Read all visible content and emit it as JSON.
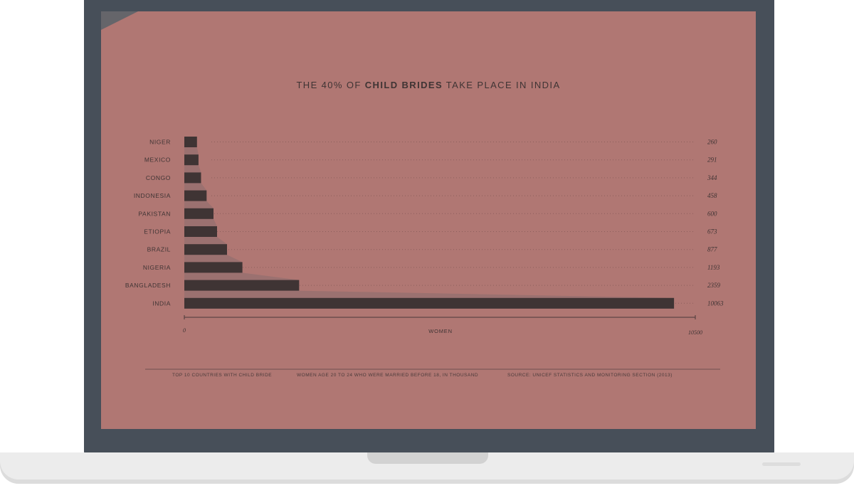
{
  "chart_data": {
    "type": "bar",
    "orientation": "horizontal",
    "title_parts": [
      "THE 40% OF ",
      "CHILD BRIDES",
      " TAKE PLACE IN INDIA"
    ],
    "categories": [
      "NIGER",
      "MEXICO",
      "CONGO",
      "INDONESIA",
      "PAKISTAN",
      "ETIOPIA",
      "BRAZIL",
      "NIGERIA",
      "BANGLADESH",
      "INDIA"
    ],
    "values": [
      260,
      291,
      344,
      458,
      600,
      673,
      877,
      1193,
      2359,
      10063
    ],
    "value_labels": [
      "260",
      "291",
      "344",
      "458",
      "600",
      "673",
      "877",
      "1193",
      "2359",
      "10063"
    ],
    "xlabel": "WOMEN",
    "xlim": [
      0,
      10500
    ],
    "x_tick_labels": [
      "0",
      "10500"
    ],
    "footer": {
      "left": "TOP 10 COUNTRIES WITH CHILD BRIDE",
      "middle": "WOMEN AGE 20 TO 24 WHO WERE MARRIED BEFORE 18, IN THOUSAND",
      "right": "SOURCE: UNICEF STATISTICS AND MONITORING SECTION (2013)"
    },
    "colors": {
      "background": "#b07773",
      "bar": "#3f3434",
      "bar_shadow": "#8a6e6d",
      "text": "#3f3434"
    }
  }
}
